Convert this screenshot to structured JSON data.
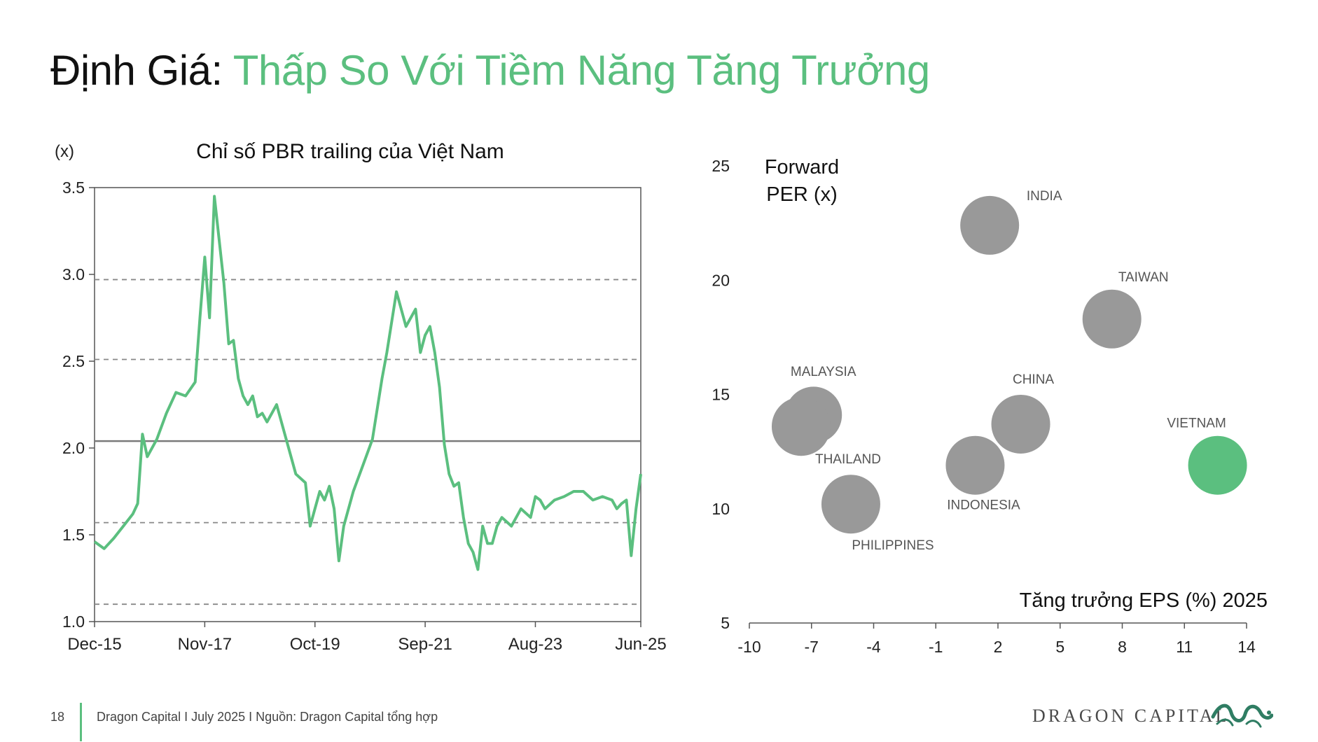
{
  "title": {
    "prefix": "Định Giá:",
    "highlight": "Thấp So Với Tiềm Năng Tăng Trưởng"
  },
  "colors": {
    "accent": "#5bbf7f",
    "bubble_grey": "#999999",
    "axis": "#555555"
  },
  "chart_data": [
    {
      "type": "line",
      "title": "Chỉ số PBR trailing của Việt Nam",
      "ylabel": "(x)",
      "xlabel": "",
      "x_tick_labels": [
        "Dec-15",
        "Nov-17",
        "Oct-19",
        "Sep-21",
        "Aug-23",
        "Jun-25"
      ],
      "x_tick_dates": [
        "2015-12",
        "2017-11",
        "2019-10",
        "2021-09",
        "2023-08",
        "2025-06"
      ],
      "y_ticks": [
        "1.0",
        "1.5",
        "2.0",
        "2.5",
        "3.0",
        "3.5"
      ],
      "ylim": [
        1.0,
        3.5
      ],
      "grid": false,
      "reference_lines": [
        {
          "value": 2.04,
          "style": "solid"
        },
        {
          "value": 2.51,
          "style": "dashed"
        },
        {
          "value": 2.97,
          "style": "dashed"
        },
        {
          "value": 1.57,
          "style": "dashed"
        },
        {
          "value": 1.1,
          "style": "dashed"
        }
      ],
      "series": [
        {
          "color": "#5bbf7f",
          "x": [
            "2015-12",
            "2016-02",
            "2016-04",
            "2016-06",
            "2016-08",
            "2016-09",
            "2016-10",
            "2016-11",
            "2017-01",
            "2017-03",
            "2017-05",
            "2017-07",
            "2017-09",
            "2017-10",
            "2017-11",
            "2017-12",
            "2018-01",
            "2018-02",
            "2018-03",
            "2018-04",
            "2018-05",
            "2018-06",
            "2018-07",
            "2018-08",
            "2018-09",
            "2018-10",
            "2018-11",
            "2018-12",
            "2019-02",
            "2019-04",
            "2019-06",
            "2019-08",
            "2019-09",
            "2019-10",
            "2019-11",
            "2019-12",
            "2020-01",
            "2020-02",
            "2020-03",
            "2020-04",
            "2020-06",
            "2020-08",
            "2020-10",
            "2020-12",
            "2021-01",
            "2021-03",
            "2021-05",
            "2021-07",
            "2021-08",
            "2021-09",
            "2021-10",
            "2021-11",
            "2021-12",
            "2022-01",
            "2022-02",
            "2022-03",
            "2022-04",
            "2022-05",
            "2022-06",
            "2022-07",
            "2022-08",
            "2022-09",
            "2022-10",
            "2022-11",
            "2022-12",
            "2023-01",
            "2023-03",
            "2023-05",
            "2023-07",
            "2023-08",
            "2023-09",
            "2023-10",
            "2023-12",
            "2024-02",
            "2024-04",
            "2024-06",
            "2024-08",
            "2024-10",
            "2024-12",
            "2025-01",
            "2025-02",
            "2025-03",
            "2025-04",
            "2025-05",
            "2025-06"
          ],
          "values": [
            1.46,
            1.42,
            1.48,
            1.55,
            1.62,
            1.68,
            2.08,
            1.95,
            2.05,
            2.2,
            2.32,
            2.3,
            2.38,
            2.75,
            3.1,
            2.75,
            3.45,
            3.2,
            2.95,
            2.6,
            2.62,
            2.4,
            2.3,
            2.25,
            2.3,
            2.18,
            2.2,
            2.15,
            2.25,
            2.05,
            1.85,
            1.8,
            1.55,
            1.65,
            1.75,
            1.7,
            1.78,
            1.65,
            1.35,
            1.55,
            1.75,
            1.9,
            2.05,
            2.4,
            2.55,
            2.9,
            2.7,
            2.8,
            2.55,
            2.65,
            2.7,
            2.55,
            2.35,
            2.02,
            1.85,
            1.78,
            1.8,
            1.6,
            1.45,
            1.4,
            1.3,
            1.55,
            1.45,
            1.45,
            1.55,
            1.6,
            1.55,
            1.65,
            1.6,
            1.72,
            1.7,
            1.65,
            1.7,
            1.72,
            1.75,
            1.75,
            1.7,
            1.72,
            1.7,
            1.65,
            1.68,
            1.7,
            1.38,
            1.65,
            1.85
          ]
        }
      ]
    },
    {
      "type": "scatter",
      "title": "",
      "ylabel": "Forward PER (x)",
      "ylabel_lines": [
        "Forward",
        "PER (x)"
      ],
      "xlabel": "Tăng trưởng EPS (%) 2025",
      "x_ticks": [
        "-10",
        "-7",
        "-4",
        "-1",
        "2",
        "5",
        "8",
        "11",
        "14"
      ],
      "y_ticks": [
        "5",
        "10",
        "15",
        "20",
        "25"
      ],
      "xlim": [
        -10,
        14
      ],
      "ylim": [
        5,
        25
      ],
      "grid": false,
      "points": [
        {
          "label": "INDIA",
          "x": 1.6,
          "y": 22.4,
          "color": "#999999"
        },
        {
          "label": "TAIWAN",
          "x": 7.5,
          "y": 18.3,
          "color": "#999999"
        },
        {
          "label": "MALAYSIA",
          "x": -6.9,
          "y": 14.1,
          "color": "#999999"
        },
        {
          "label": "",
          "x": -7.5,
          "y": 13.6,
          "color": "#999999"
        },
        {
          "label": "CHINA",
          "x": 3.1,
          "y": 13.7,
          "color": "#999999"
        },
        {
          "label": "THAILAND",
          "x": -5.1,
          "y": 10.2,
          "color": "#999999"
        },
        {
          "label": "INDONESIA",
          "x": 0.9,
          "y": 11.9,
          "color": "#999999"
        },
        {
          "label": "PHILIPPINES",
          "x": -5.1,
          "y": 10.2,
          "color": "#999999"
        },
        {
          "label": "VIETNAM",
          "x": 12.6,
          "y": 11.9,
          "color": "#5bbf7f"
        }
      ]
    }
  ],
  "footer": {
    "page_number": "18",
    "text": "Dragon Capital I July 2025 I Nguồn: Dragon Capital tổng hợp",
    "brand": "DRAGON CAPITAL"
  }
}
